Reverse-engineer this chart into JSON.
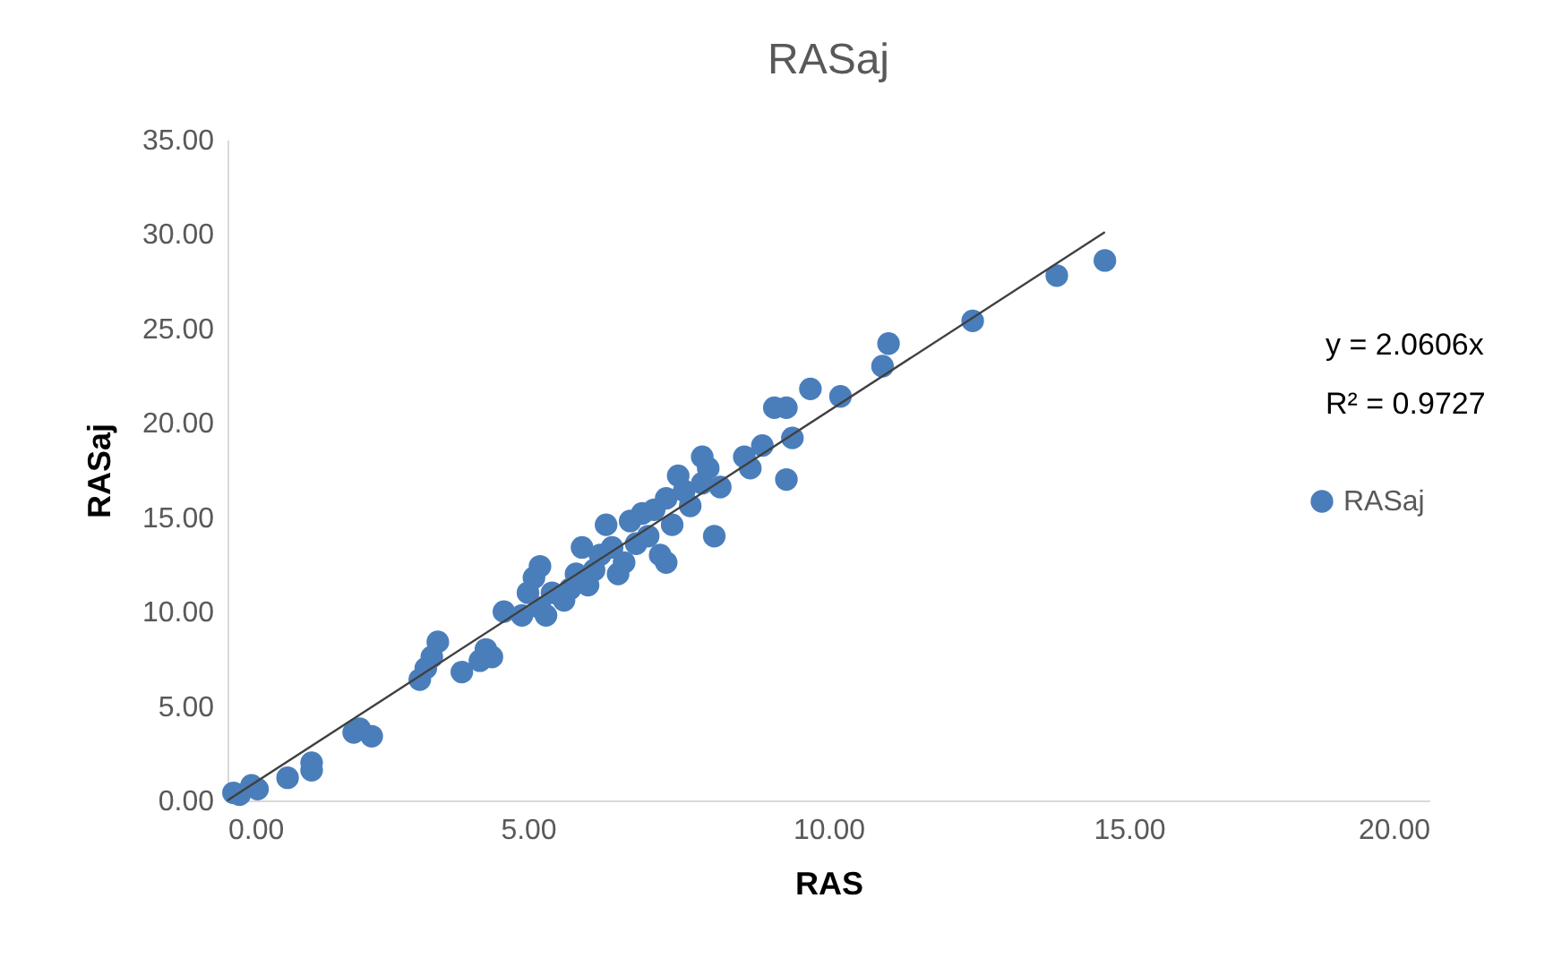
{
  "chart_data": {
    "type": "scatter",
    "title": "RASaj",
    "xlabel": "RAS",
    "ylabel": "RASaj",
    "xlim": [
      0,
      20
    ],
    "ylim": [
      0,
      35
    ],
    "xticks": [
      {
        "value": 0,
        "label": "0.00"
      },
      {
        "value": 5,
        "label": "5.00"
      },
      {
        "value": 10,
        "label": "10.00"
      },
      {
        "value": 15,
        "label": "15.00"
      },
      {
        "value": 20,
        "label": "20.00"
      }
    ],
    "yticks": [
      {
        "value": 0,
        "label": "0.00"
      },
      {
        "value": 5,
        "label": "5.00"
      },
      {
        "value": 10,
        "label": "10.00"
      },
      {
        "value": 15,
        "label": "15.00"
      },
      {
        "value": 20,
        "label": "20.00"
      },
      {
        "value": 25,
        "label": "25.00"
      },
      {
        "value": 30,
        "label": "30.00"
      },
      {
        "value": 35,
        "label": "35.00"
      }
    ],
    "grid": false,
    "legend": "right",
    "marker": "circle",
    "annotations": [
      "y = 2.0606x",
      "R² = 0.9727"
    ],
    "series": [
      {
        "name": "RASaj",
        "color": "#4a7ebb",
        "x": [
          0.1,
          0.2,
          0.4,
          0.5,
          1.0,
          1.4,
          1.4,
          2.1,
          2.2,
          2.4,
          3.2,
          3.3,
          3.4,
          3.5,
          3.9,
          4.2,
          4.3,
          4.4,
          4.6,
          4.9,
          5.0,
          5.1,
          5.2,
          5.2,
          5.3,
          5.4,
          5.6,
          5.7,
          5.8,
          5.9,
          6.0,
          6.1,
          6.2,
          6.3,
          6.4,
          6.5,
          6.6,
          6.7,
          6.8,
          6.9,
          7.0,
          7.1,
          7.2,
          7.3,
          7.3,
          7.4,
          7.5,
          7.6,
          7.7,
          7.9,
          7.9,
          8.0,
          8.1,
          8.2,
          8.6,
          8.7,
          8.9,
          9.1,
          9.3,
          9.3,
          9.4,
          9.7,
          10.2,
          10.9,
          11.0,
          12.4,
          13.8,
          14.6
        ],
        "values": [
          0.4,
          0.3,
          0.8,
          0.6,
          1.2,
          1.6,
          2.0,
          3.6,
          3.8,
          3.4,
          6.4,
          7.0,
          7.6,
          8.4,
          6.8,
          7.4,
          8.0,
          7.6,
          10.0,
          9.8,
          11.0,
          11.8,
          12.4,
          10.2,
          9.8,
          11.0,
          10.6,
          11.2,
          12.0,
          13.4,
          11.4,
          12.2,
          13.0,
          14.6,
          13.4,
          12.0,
          12.6,
          14.8,
          13.6,
          15.2,
          14.0,
          15.4,
          13.0,
          12.6,
          16.0,
          14.6,
          17.2,
          16.4,
          15.6,
          18.2,
          16.8,
          17.6,
          14.0,
          16.6,
          18.2,
          17.6,
          18.8,
          20.8,
          17.0,
          20.8,
          19.2,
          21.8,
          21.4,
          23.0,
          24.2,
          25.4,
          27.8,
          28.6
        ]
      },
      {
        "type": "line",
        "color": "#404040",
        "line_style": "solid",
        "marker": "none",
        "x": [
          0,
          14.6
        ],
        "values": [
          0,
          30.1
        ]
      }
    ]
  }
}
